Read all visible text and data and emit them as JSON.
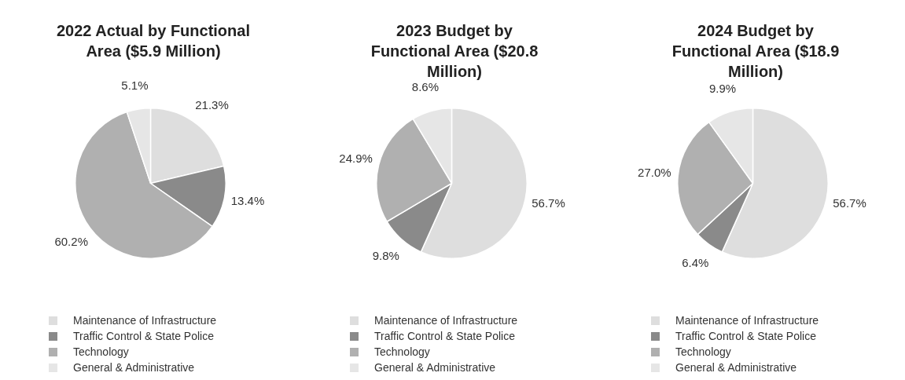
{
  "chart_data": [
    {
      "type": "pie",
      "title": "2022 Actual by Functional Area ($5.9 Million)",
      "categories": [
        "Maintenance of Infrastructure",
        "Traffic Control & State Police",
        "Technology",
        "General & Administrative"
      ],
      "values": [
        21.3,
        13.4,
        60.2,
        5.1
      ],
      "value_labels": [
        "21.3%",
        "13.4%",
        "60.2%",
        "5.1%"
      ],
      "colors": [
        "#dedede",
        "#8a8a8a",
        "#b0b0b0",
        "#e6e6e6"
      ],
      "legend": "bottom"
    },
    {
      "type": "pie",
      "title": "2023 Budget by Functional Area ($20.8 Million)",
      "categories": [
        "Maintenance of Infrastructure",
        "Traffic Control & State Police",
        "Technology",
        "General & Administrative"
      ],
      "values": [
        56.7,
        9.8,
        24.9,
        8.6
      ],
      "value_labels": [
        "56.7%",
        "9.8%",
        "24.9%",
        "8.6%"
      ],
      "colors": [
        "#dedede",
        "#8a8a8a",
        "#b0b0b0",
        "#e6e6e6"
      ],
      "legend": "bottom"
    },
    {
      "type": "pie",
      "title": "2024 Budget by Functional Area ($18.9 Million)",
      "categories": [
        "Maintenance of Infrastructure",
        "Traffic Control & State Police",
        "Technology",
        "General & Administrative"
      ],
      "values": [
        56.7,
        6.4,
        27.0,
        9.9
      ],
      "value_labels": [
        "56.7%",
        "6.4%",
        "27.0%",
        "9.9%"
      ],
      "colors": [
        "#dedede",
        "#8a8a8a",
        "#b0b0b0",
        "#e6e6e6"
      ],
      "legend": "bottom"
    }
  ]
}
